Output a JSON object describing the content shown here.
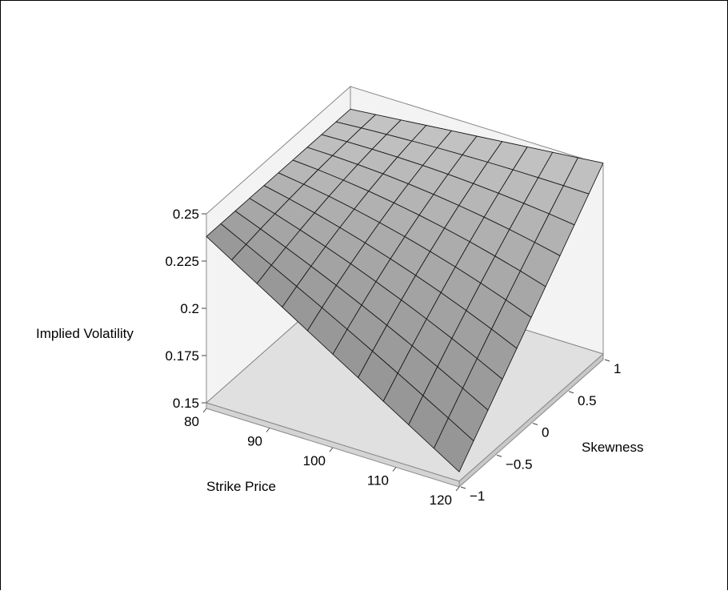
{
  "chart_data": {
    "type": "surface",
    "title": "",
    "xlabel": "Strike Price",
    "ylabel": "Skewness",
    "zlabel": "Implied Volatility",
    "x_ticks": [
      "80",
      "90",
      "100",
      "110",
      "120"
    ],
    "y_ticks": [
      "-1",
      "-0.5",
      "0",
      "0.5",
      "1"
    ],
    "z_ticks": [
      "0.15",
      "0.175",
      "0.2",
      "0.225",
      "0.25"
    ],
    "xlim": [
      80,
      120
    ],
    "ylim": [
      -1,
      1
    ],
    "zlim": [
      0.15,
      0.25
    ],
    "grid_x": [
      80,
      84,
      88,
      92,
      96,
      100,
      104,
      108,
      112,
      116,
      120
    ],
    "grid_y": [
      -1,
      -0.8,
      -0.6,
      -0.4,
      -0.2,
      0,
      0.2,
      0.4,
      0.6,
      0.8,
      1
    ],
    "surface": {
      "corner_values": {
        "x80_yminus1": 0.238,
        "x120_yminus1": 0.155,
        "x80_y1": 0.238,
        "x120_y1": 0.251
      },
      "center_value": 0.225
    },
    "colors": {
      "surface": "#b4b4b4",
      "surface_dark": "#8c8c8c",
      "box_edges": "#888888",
      "walls": "#f3f3f3",
      "floor": "#e0e0e0"
    }
  }
}
